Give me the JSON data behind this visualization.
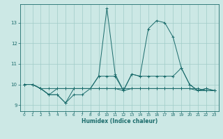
{
  "title": "",
  "xlabel": "Humidex (Indice chaleur)",
  "ylabel": "",
  "background_color": "#cce8e5",
  "grid_color": "#a0ccc8",
  "line_color": "#1a6b6b",
  "xlim": [
    -0.5,
    23.5
  ],
  "ylim": [
    8.7,
    13.9
  ],
  "yticks": [
    9,
    10,
    11,
    12,
    13
  ],
  "xticks": [
    0,
    1,
    2,
    3,
    4,
    5,
    6,
    7,
    8,
    9,
    10,
    11,
    12,
    13,
    14,
    15,
    16,
    17,
    18,
    19,
    20,
    21,
    22,
    23
  ],
  "series": [
    [
      10.0,
      10.0,
      9.8,
      9.5,
      9.5,
      9.1,
      9.8,
      9.8,
      9.8,
      10.4,
      13.7,
      10.5,
      9.7,
      10.5,
      10.4,
      12.7,
      13.1,
      13.0,
      12.3,
      10.8,
      10.0,
      9.7,
      9.8,
      9.7
    ],
    [
      10.0,
      10.0,
      9.8,
      9.8,
      9.8,
      9.8,
      9.8,
      9.8,
      9.8,
      9.8,
      9.8,
      9.8,
      9.8,
      9.8,
      9.8,
      9.8,
      9.8,
      9.8,
      9.8,
      9.8,
      9.8,
      9.8,
      9.7,
      9.7
    ],
    [
      10.0,
      10.0,
      9.8,
      9.5,
      9.8,
      9.8,
      9.8,
      9.8,
      9.8,
      10.4,
      10.4,
      10.4,
      9.7,
      10.5,
      10.4,
      10.4,
      10.4,
      10.4,
      10.4,
      10.8,
      10.0,
      9.7,
      9.8,
      9.7
    ],
    [
      10.0,
      10.0,
      9.8,
      9.5,
      9.5,
      9.1,
      9.5,
      9.5,
      9.8,
      9.8,
      9.8,
      9.8,
      9.7,
      9.8,
      9.8,
      9.8,
      9.8,
      9.8,
      9.8,
      9.8,
      9.8,
      9.7,
      9.7,
      9.7
    ]
  ]
}
